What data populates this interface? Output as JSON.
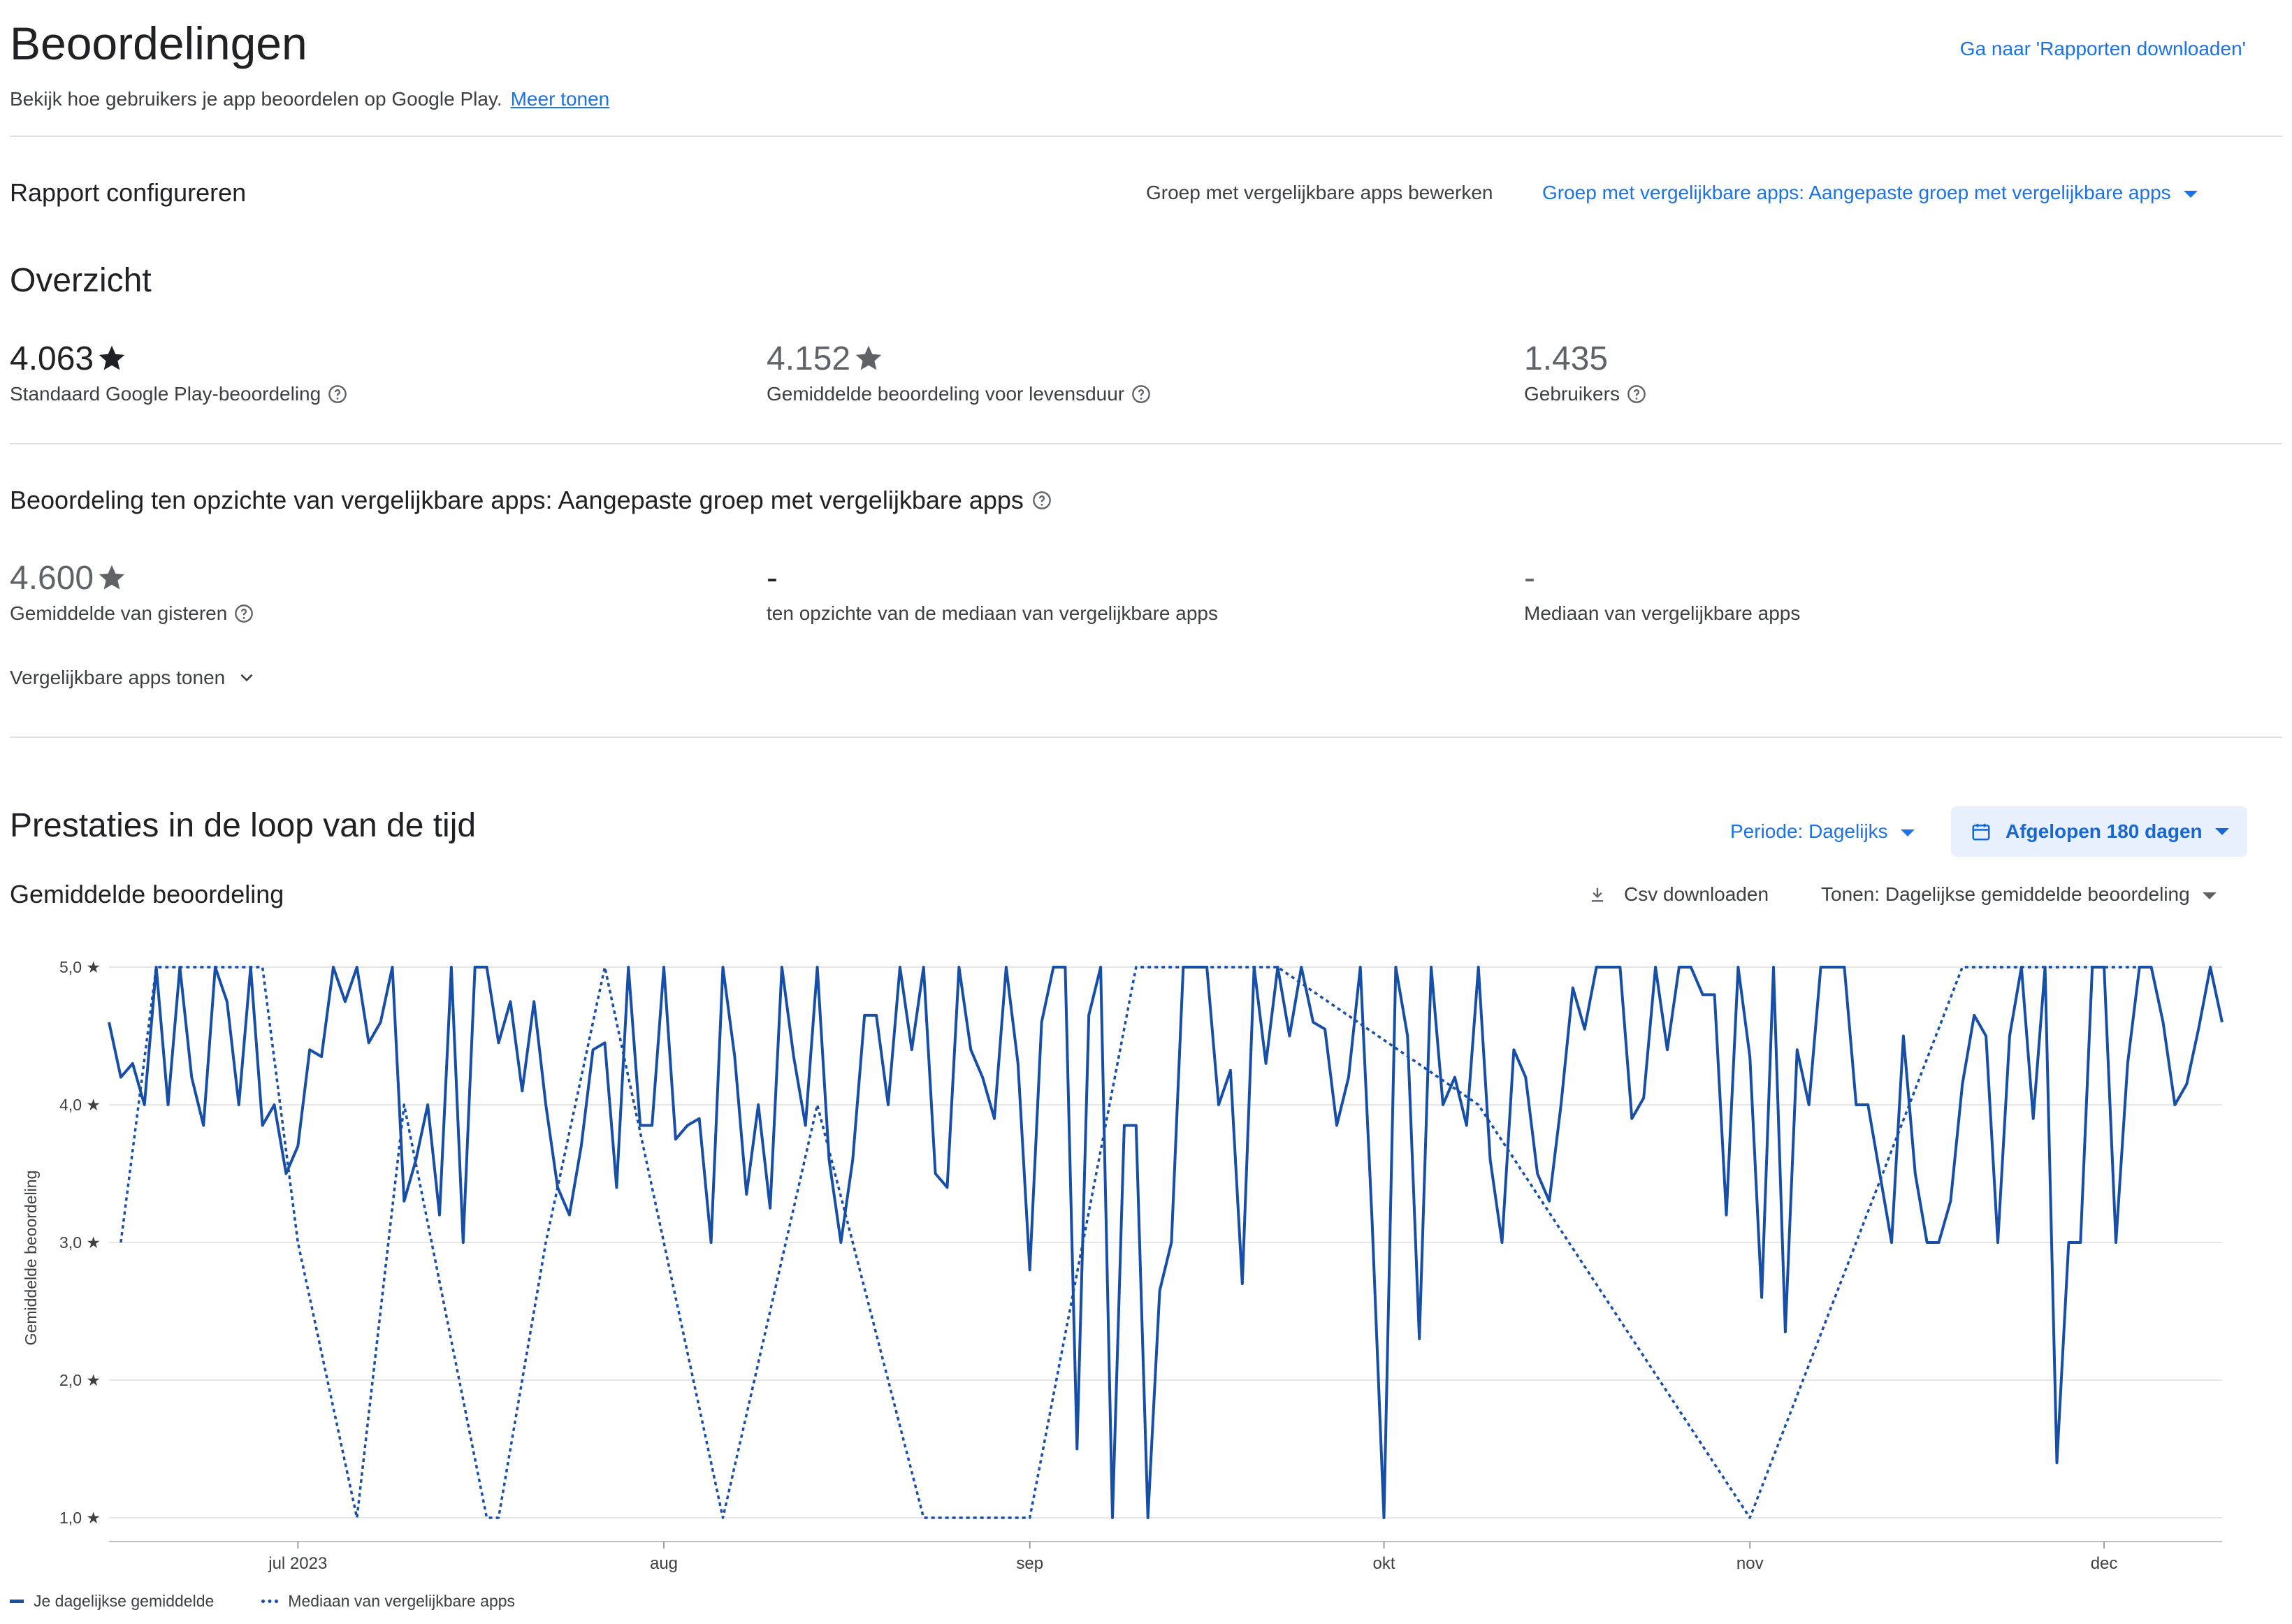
{
  "header": {
    "title": "Beoordelingen",
    "subtitle": "Bekijk hoe gebruikers je app beoordelen op Google Play.",
    "more_link": "Meer tonen",
    "download_reports_link": "Ga naar 'Rapporten downloaden'"
  },
  "configure": {
    "title": "Rapport configureren",
    "edit_peer_group": "Groep met vergelijkbare apps bewerken",
    "peer_group_select": "Groep met vergelijkbare apps: Aangepaste groep met vergelijkbare apps"
  },
  "overview": {
    "title": "Overzicht",
    "metrics": [
      {
        "value": "4.063",
        "label": "Standaard Google Play-beoordeling"
      },
      {
        "value": "4.152",
        "label": "Gemiddelde beoordeling voor levensduur"
      },
      {
        "value": "1.435",
        "label": "Gebruikers"
      }
    ]
  },
  "peer": {
    "title": "Beoordeling ten opzichte van vergelijkbare apps: Aangepaste groep met vergelijkbare apps",
    "metrics": [
      {
        "value": "4.600",
        "label": "Gemiddelde van gisteren"
      },
      {
        "value": "-",
        "label": "ten opzichte van de mediaan van vergelijkbare apps"
      },
      {
        "value": "-",
        "label": "Mediaan van vergelijkbare apps"
      }
    ],
    "show_peers": "Vergelijkbare apps tonen"
  },
  "performance": {
    "title": "Prestaties in de loop van de tijd",
    "period_select": "Periode: Dagelijks",
    "date_range_button": "Afgelopen 180 dagen",
    "chart_title": "Gemiddelde beoordeling",
    "csv_download": "Csv downloaden",
    "show_select": "Tonen: Dagelijkse gemiddelde beoordeling"
  },
  "colors": {
    "accent": "#1a73e8",
    "series": "#174ea6",
    "text": "#202124"
  },
  "chart_data": {
    "type": "line",
    "ylabel": "Gemiddelde beoordeling",
    "ylim": [
      1,
      5
    ],
    "y_ticks": [
      "5,0 ★",
      "4,0 ★",
      "3,0 ★",
      "2,0 ★",
      "1,0 ★"
    ],
    "x_ticks": [
      "jul 2023",
      "aug",
      "sep",
      "okt",
      "nov",
      "dec"
    ],
    "x_tick_days": [
      16,
      47,
      78,
      108,
      139,
      169
    ],
    "series": [
      {
        "name": "Je dagelijkse gemiddelde",
        "style": "solid",
        "x": [
          0,
          1,
          2,
          3,
          4,
          5,
          6,
          7,
          8,
          9,
          10,
          11,
          12,
          13,
          14,
          15,
          16,
          17,
          18,
          19,
          20,
          21,
          22,
          23,
          24,
          25,
          26,
          27,
          28,
          29,
          30,
          31,
          32,
          33,
          34,
          35,
          36,
          37,
          38,
          39,
          40,
          41,
          42,
          43,
          44,
          45,
          46,
          47,
          48,
          49,
          50,
          51,
          52,
          53,
          54,
          55,
          56,
          57,
          58,
          59,
          60,
          61,
          62,
          63,
          64,
          65,
          66,
          67,
          68,
          69,
          70,
          71,
          72,
          73,
          74,
          75,
          76,
          77,
          78,
          79,
          80,
          81,
          82,
          83,
          84,
          85,
          86,
          87,
          88,
          89,
          90,
          91,
          92,
          93,
          94,
          95,
          96,
          97,
          98,
          99,
          100,
          101,
          102,
          103,
          104,
          105,
          106,
          107,
          108,
          109,
          110,
          111,
          112,
          113,
          114,
          115,
          116,
          117,
          118,
          119,
          120,
          121,
          122,
          123,
          124,
          125,
          126,
          127,
          128,
          129,
          130,
          131,
          132,
          133,
          134,
          135,
          136,
          137,
          138,
          139,
          140,
          141,
          142,
          143,
          144,
          145,
          146,
          147,
          148,
          149,
          150,
          151,
          152,
          153,
          154,
          155,
          156,
          157,
          158,
          159,
          160,
          161,
          162,
          163,
          164,
          165,
          166,
          167,
          168,
          169,
          170,
          171,
          172,
          173,
          174,
          175,
          176,
          177,
          178,
          179
        ],
        "values": [
          4.6,
          4.2,
          4.3,
          4.0,
          5.0,
          4.0,
          5.0,
          4.2,
          3.85,
          5.0,
          4.75,
          4.0,
          5.0,
          3.85,
          4.0,
          3.5,
          3.7,
          4.4,
          4.35,
          5.0,
          4.75,
          5.0,
          4.45,
          4.6,
          5.0,
          3.3,
          3.6,
          4.0,
          3.2,
          5.0,
          3.0,
          5.0,
          5.0,
          4.45,
          4.75,
          4.1,
          4.75,
          4.0,
          3.4,
          3.2,
          3.7,
          4.4,
          4.45,
          3.4,
          5.0,
          3.85,
          3.85,
          5.0,
          3.75,
          3.85,
          3.9,
          3.0,
          5.0,
          4.35,
          3.35,
          4.0,
          3.25,
          5.0,
          4.35,
          3.85,
          5.0,
          3.6,
          3.0,
          3.6,
          4.65,
          4.65,
          4.0,
          5.0,
          4.4,
          5.0,
          3.5,
          3.4,
          5.0,
          4.4,
          4.2,
          3.9,
          5.0,
          4.3,
          2.8,
          4.6,
          5.0,
          5.0,
          1.5,
          4.65,
          5.0,
          1.0,
          3.85,
          3.85,
          1.0,
          2.65,
          3.0,
          5.0,
          5.0,
          5.0,
          4.0,
          4.25,
          2.7,
          5.0,
          4.3,
          5.0,
          4.5,
          5.0,
          4.6,
          4.55,
          3.85,
          4.2,
          5.0,
          3.15,
          1.0,
          5.0,
          4.5,
          2.3,
          5.0,
          4.0,
          4.2,
          3.85,
          5.0,
          3.6,
          3.0,
          4.4,
          4.2,
          3.5,
          3.3,
          4.0,
          4.85,
          4.55,
          5.0,
          5.0,
          5.0,
          3.9,
          4.05,
          5.0,
          4.4,
          5.0,
          5.0,
          4.8,
          4.8,
          3.2,
          5.0,
          4.35,
          2.6,
          5.0,
          2.35,
          4.4,
          4.0,
          5.0,
          5.0,
          5.0,
          4.0,
          4.0,
          3.5,
          3.0,
          4.5,
          3.5,
          3.0,
          3.0,
          3.3,
          4.15,
          4.65,
          4.5,
          3.0,
          4.5,
          5.0,
          3.9,
          5.0,
          1.4,
          3.0,
          3.0,
          5.0,
          5.0,
          3.0,
          4.3,
          5.0,
          5.0,
          4.6,
          4.0,
          4.15,
          4.55,
          5.0,
          4.6
        ]
      },
      {
        "name": "Mediaan van vergelijkbare apps",
        "style": "dotted",
        "x": [
          1,
          4,
          13,
          16,
          21,
          25,
          32,
          33,
          37,
          42,
          52,
          60,
          69,
          78,
          87,
          90,
          99,
          116,
          139,
          157,
          172
        ],
        "values": [
          3.0,
          5.0,
          5.0,
          3.0,
          1.0,
          4.0,
          1.0,
          1.0,
          3.0,
          5.0,
          1.0,
          4.0,
          1.0,
          1.0,
          5.0,
          5.0,
          5.0,
          4.0,
          1.0,
          5.0,
          5.0
        ]
      }
    ]
  }
}
